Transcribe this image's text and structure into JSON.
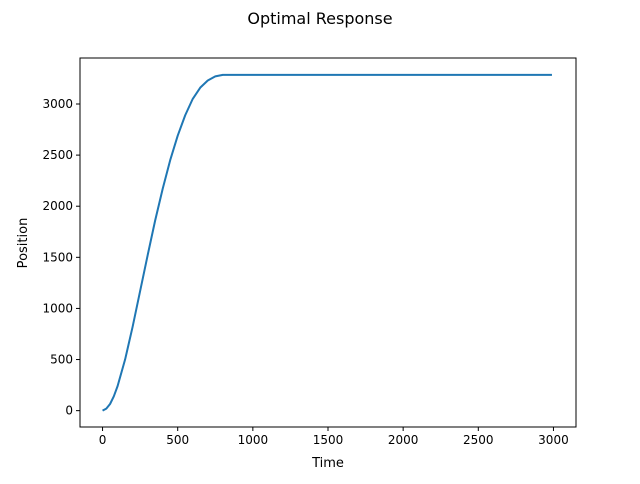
{
  "chart_data": {
    "type": "line",
    "title": "Optimal Response",
    "xlabel": "Time",
    "ylabel": "Position",
    "xlim": [
      -150,
      3150
    ],
    "ylim": [
      -160,
      3450
    ],
    "xticks": [
      0,
      500,
      1000,
      1500,
      2000,
      2500,
      3000
    ],
    "yticks": [
      0,
      500,
      1000,
      1500,
      2000,
      2500,
      3000
    ],
    "grid": false,
    "series": [
      {
        "color": "#1f77b4",
        "x": [
          0,
          25,
          50,
          75,
          100,
          150,
          200,
          250,
          300,
          350,
          400,
          450,
          500,
          550,
          600,
          650,
          700,
          750,
          800,
          850,
          900,
          1000,
          1500,
          2000,
          2500,
          2990
        ],
        "y": [
          0,
          20,
          65,
          140,
          240,
          500,
          820,
          1170,
          1520,
          1860,
          2170,
          2450,
          2690,
          2890,
          3050,
          3160,
          3230,
          3270,
          3285,
          3285,
          3285,
          3285,
          3285,
          3285,
          3285,
          3285
        ]
      }
    ]
  }
}
